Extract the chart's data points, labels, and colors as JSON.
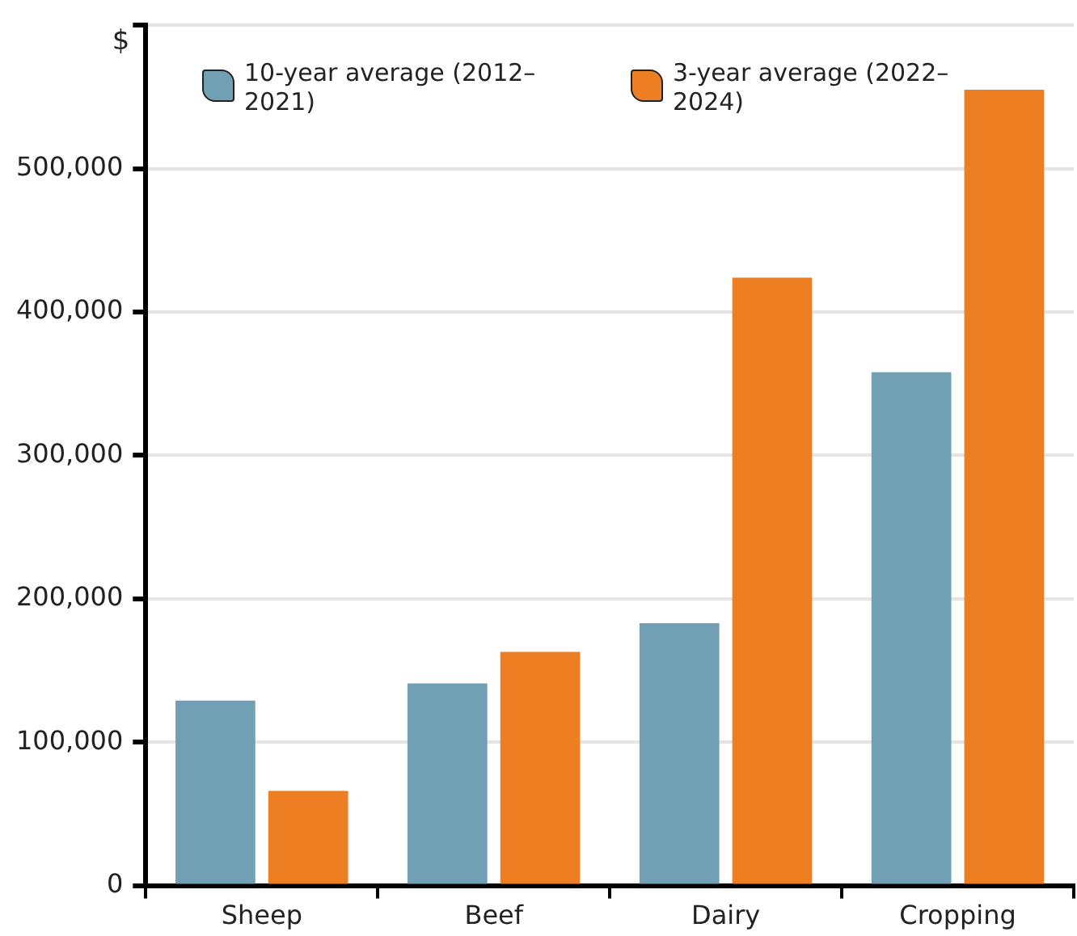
{
  "chart_data": {
    "type": "bar",
    "ylabel": "$",
    "categories": [
      "Sheep",
      "Beef",
      "Dairy",
      "Cropping"
    ],
    "series": [
      {
        "name": "10-year average (2012–2021)",
        "color": "#71a0b5",
        "values": [
          129000,
          141000,
          183000,
          358000
        ]
      },
      {
        "name": "3-year average (2022–2024)",
        "color": "#ee7e22",
        "values": [
          66000,
          163000,
          424000,
          555000
        ]
      }
    ],
    "ylim": [
      0,
      600000
    ],
    "yticks": [
      0,
      {
        "value": 100000,
        "label": "100,000"
      },
      {
        "value": 200000,
        "label": "200,000"
      },
      {
        "value": 300000,
        "label": "300,000"
      },
      {
        "value": 400000,
        "label": "400,000"
      },
      {
        "value": 500000,
        "label": "500,000"
      },
      {
        "value": 600000,
        "label": null
      }
    ],
    "grid": "y",
    "legend": "top"
  }
}
